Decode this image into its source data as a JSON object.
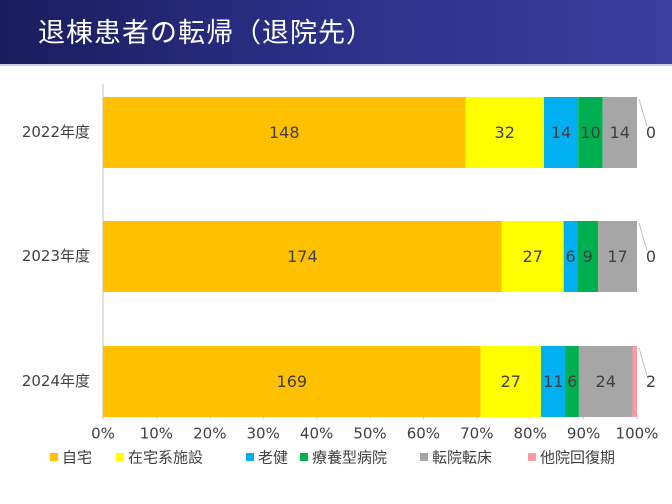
{
  "header": {
    "title": "退棟患者の転帰（退院先）"
  },
  "chart_data": {
    "type": "bar",
    "orientation": "horizontal",
    "stacked": "percent",
    "categories": [
      "2022年度",
      "2023年度",
      "2024年度"
    ],
    "series": [
      {
        "name": "自宅",
        "color": "#ffc000",
        "values": [
          148,
          174,
          169
        ]
      },
      {
        "name": "在宅系施設",
        "color": "#ffff00",
        "values": [
          32,
          27,
          27
        ]
      },
      {
        "name": "老健",
        "color": "#00b0f0",
        "values": [
          14,
          6,
          11
        ]
      },
      {
        "name": "療養型病院",
        "color": "#00b050",
        "values": [
          10,
          9,
          6
        ]
      },
      {
        "name": "転院転床",
        "color": "#a6a6a6",
        "values": [
          14,
          17,
          24
        ]
      },
      {
        "name": "他院回復期",
        "color": "#ff99a0",
        "values": [
          0,
          0,
          2
        ]
      }
    ],
    "x_ticks": [
      "0%",
      "10%",
      "20%",
      "30%",
      "40%",
      "50%",
      "60%",
      "70%",
      "80%",
      "90%",
      "100%"
    ],
    "xlim": [
      0,
      100
    ],
    "legend_position": "bottom",
    "grid": false
  }
}
